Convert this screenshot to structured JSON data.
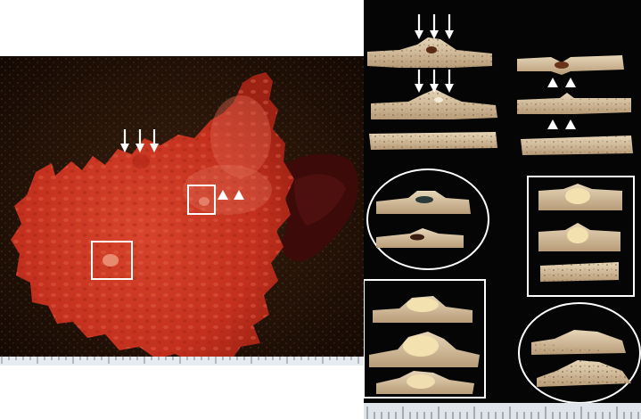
{
  "figure": {
    "left_panel": {
      "description_icons": [
        "down-arrow-icon",
        "triangle-marker-icon",
        "rectangle-box-marker"
      ],
      "arrow_count": 3,
      "triangle_count": 2,
      "box_count": 2
    },
    "right_panel": {
      "rows_top": 3,
      "groups": [
        "circle-group",
        "rectangle-group",
        "rectangle-group",
        "circle-group"
      ]
    },
    "colors": {
      "mucosa": "#c8321e",
      "mucosa_dark": "#8c1c12",
      "background_left": "#1e0f07",
      "background_right": "#050505",
      "tissue_slice": "#d9c7a6",
      "annotation": "#ffffff",
      "ruler": "#dfe4ea"
    }
  }
}
